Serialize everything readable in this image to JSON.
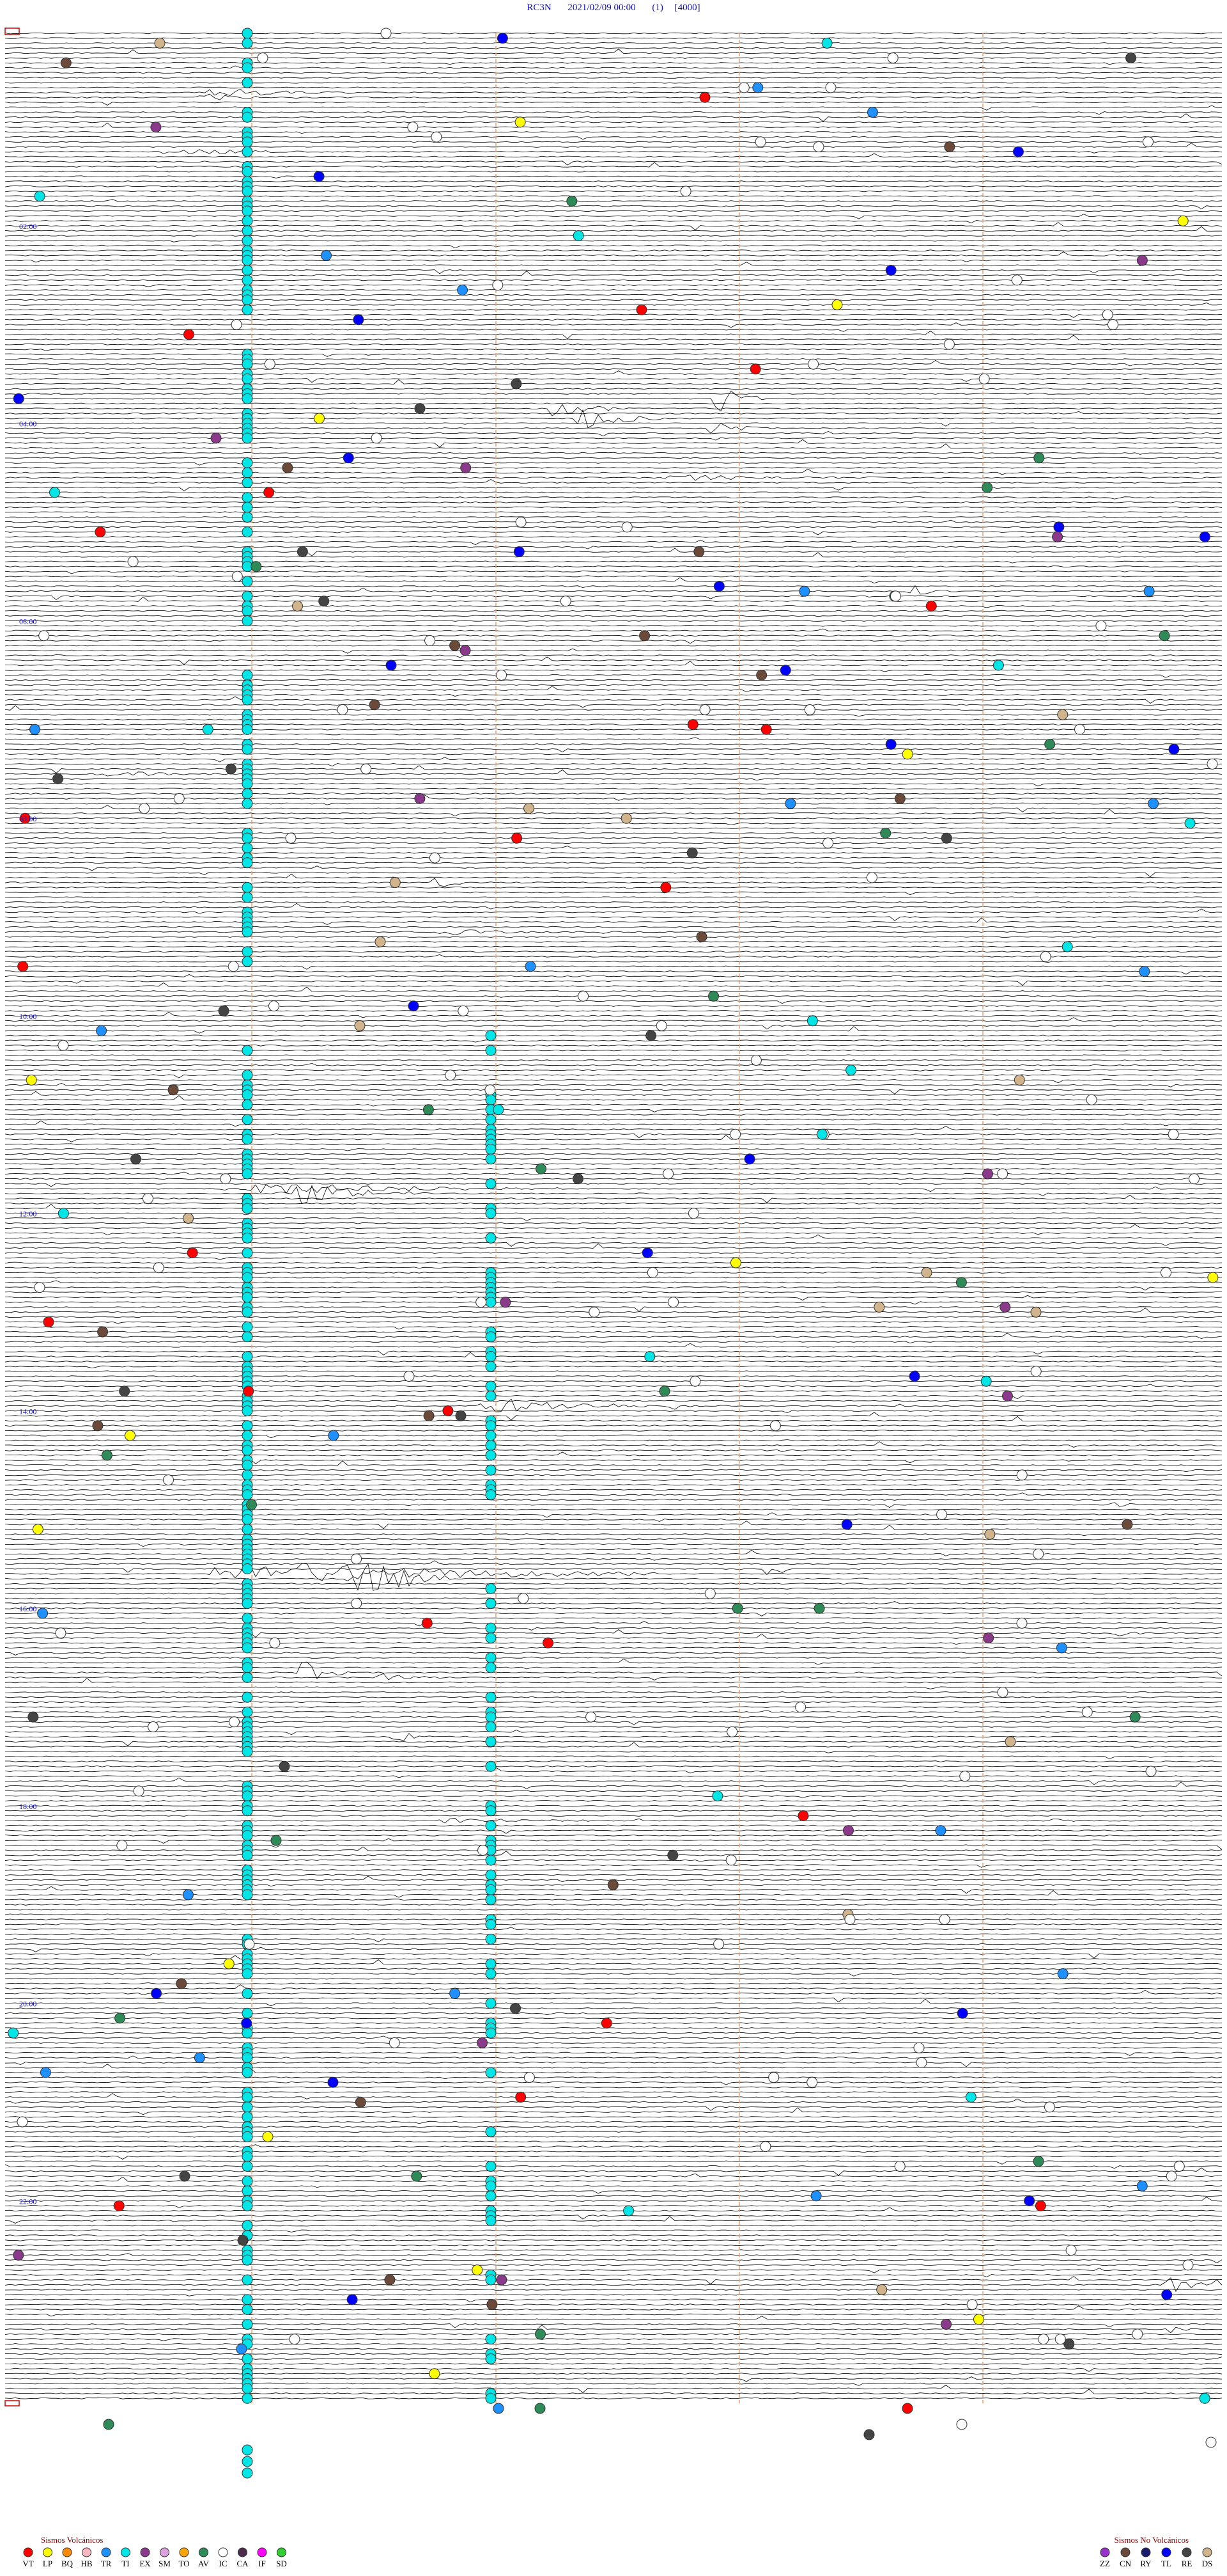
{
  "header": {
    "station": "RC3N",
    "datetime": "2021/02/09 00:00",
    "channel": "(1)",
    "scale": "[4000]"
  },
  "hour_labels": [
    "02:00",
    "04:00",
    "06:00",
    "08:00",
    "10:00",
    "12:00",
    "14:00",
    "16:00",
    "18:00",
    "20:00",
    "22:00"
  ],
  "legend": [
    {
      "title": "Sismos Volcánicos",
      "items": [
        {
          "code": "VT",
          "color": "#ff0000"
        },
        {
          "code": "LP",
          "color": "#ffff00"
        },
        {
          "code": "BQ",
          "color": "#ff8c00"
        },
        {
          "code": "HB",
          "color": "#ffb6c1"
        },
        {
          "code": "TR",
          "color": "#1e90ff"
        },
        {
          "code": "TI",
          "color": "#00e5e5"
        },
        {
          "code": "EX",
          "color": "#8b3a8b"
        },
        {
          "code": "SM",
          "color": "#dda0dd"
        },
        {
          "code": "TO",
          "color": "#ffa500"
        },
        {
          "code": "AV",
          "color": "#2e8b57"
        },
        {
          "code": "IC",
          "color": "#ffffff"
        },
        {
          "code": "CA",
          "color": "#4b2a4b"
        },
        {
          "code": "IF",
          "color": "#ff00ff"
        },
        {
          "code": "SD",
          "color": "#32cd32"
        }
      ]
    },
    {
      "title": "Sismos No Volcánicos",
      "items": [
        {
          "code": "ZZ",
          "color": "#9932cc"
        },
        {
          "code": "CN",
          "color": "#6b4a3a"
        },
        {
          "code": "RY",
          "color": "#1a1a6e"
        },
        {
          "code": "TL",
          "color": "#0000ff"
        },
        {
          "code": "RE",
          "color": "#444444"
        },
        {
          "code": "DS",
          "color": "#d2b48c"
        }
      ]
    }
  ]
}
